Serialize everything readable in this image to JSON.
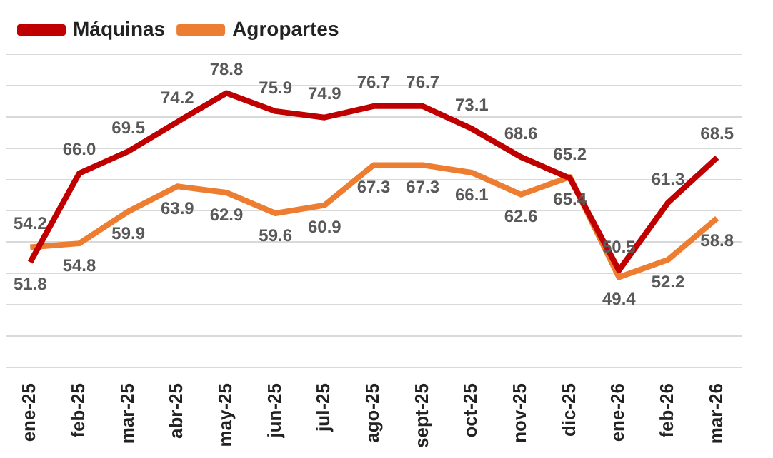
{
  "chart_data": {
    "type": "line",
    "categories": [
      "ene-25",
      "feb-25",
      "mar-25",
      "abr-25",
      "may-25",
      "jun-25",
      "jul-25",
      "ago-25",
      "sept-25",
      "oct-25",
      "nov-25",
      "dic-25",
      "ene-26",
      "feb-26",
      "mar-26"
    ],
    "series": [
      {
        "name": "Máquinas",
        "color": "#c00000",
        "values": [
          51.8,
          66.0,
          69.5,
          74.2,
          78.8,
          75.9,
          74.9,
          76.7,
          76.7,
          73.1,
          68.6,
          65.2,
          50.5,
          61.3,
          68.5
        ],
        "value_labels": [
          "51.8",
          "66.0",
          "69.5",
          "74.2",
          "78.8",
          "75.9",
          "74.9",
          "76.7",
          "76.7",
          "73.1",
          "68.6",
          "65.2",
          "50.5",
          "61.3",
          "68.5"
        ]
      },
      {
        "name": "Agropartes",
        "color": "#ed7d31",
        "values": [
          54.2,
          54.8,
          59.9,
          63.9,
          62.9,
          59.6,
          60.9,
          67.3,
          67.3,
          66.1,
          62.6,
          65.4,
          49.4,
          52.2,
          58.8
        ],
        "value_labels": [
          "54.2",
          "54.8",
          "59.9",
          "63.9",
          "62.9",
          "59.6",
          "60.9",
          "67.3",
          "67.3",
          "66.1",
          "62.6",
          "65.4",
          "49.4",
          "52.2",
          "58.8"
        ]
      }
    ],
    "ylim": [
      35,
      85
    ],
    "yticks": [
      {
        "value": 35,
        "label": null
      },
      {
        "value": 40,
        "label": null
      },
      {
        "value": 45,
        "label": null
      },
      {
        "value": 50,
        "label": null
      },
      {
        "value": 55,
        "label": null
      },
      {
        "value": 60,
        "label": null
      },
      {
        "value": 65,
        "label": null
      },
      {
        "value": 70,
        "label": null
      },
      {
        "value": 75,
        "label": null
      },
      {
        "value": 80,
        "label": null
      },
      {
        "value": 85,
        "label": null
      }
    ],
    "tick_labels": "x",
    "grid": "y",
    "legend": "top left",
    "marker": "none",
    "line_style": "solid"
  }
}
